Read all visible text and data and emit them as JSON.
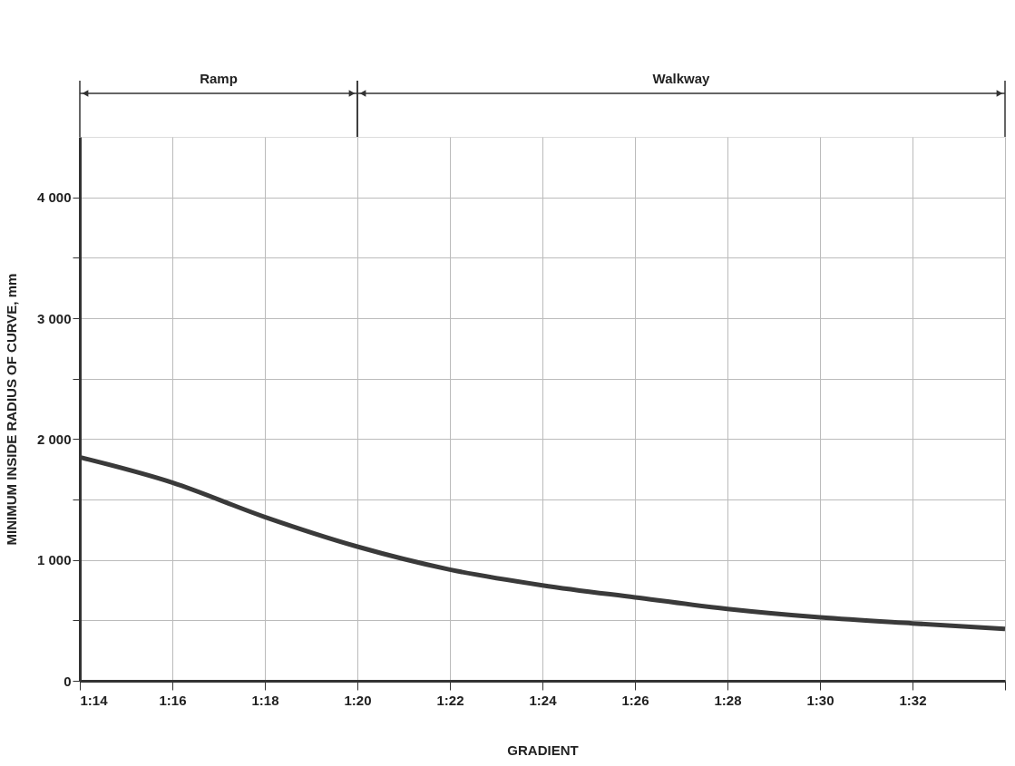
{
  "chart_data": {
    "type": "line",
    "xlabel": "GRADIENT",
    "ylabel": "MINIMUM INSIDE RADIUS OF CURVE, mm",
    "categories": [
      "1:14",
      "1:16",
      "1:18",
      "1:20",
      "1:22",
      "1:24",
      "1:26",
      "1:28",
      "1:30",
      "1:32",
      null
    ],
    "series": [
      {
        "color": "#3a3a3a",
        "values": [
          1850,
          1640,
          1355,
          1110,
          920,
          790,
          690,
          595,
          525,
          475,
          430
        ]
      }
    ],
    "ylim": [
      0,
      4500
    ],
    "yticks": [
      0,
      {
        "value": 500,
        "label": null
      },
      {
        "value": 1000,
        "label": "1 000"
      },
      {
        "value": 1500,
        "label": null
      },
      {
        "value": 2000,
        "label": "2 000"
      },
      {
        "value": 2500,
        "label": null
      },
      {
        "value": 3000,
        "label": "3 000"
      },
      {
        "value": 3500,
        "label": null
      },
      {
        "value": 4000,
        "label": "4 000"
      }
    ],
    "annotations": [
      "Ramp",
      "Walkway"
    ],
    "grid": true,
    "marker": "none",
    "line_style": "solid"
  }
}
